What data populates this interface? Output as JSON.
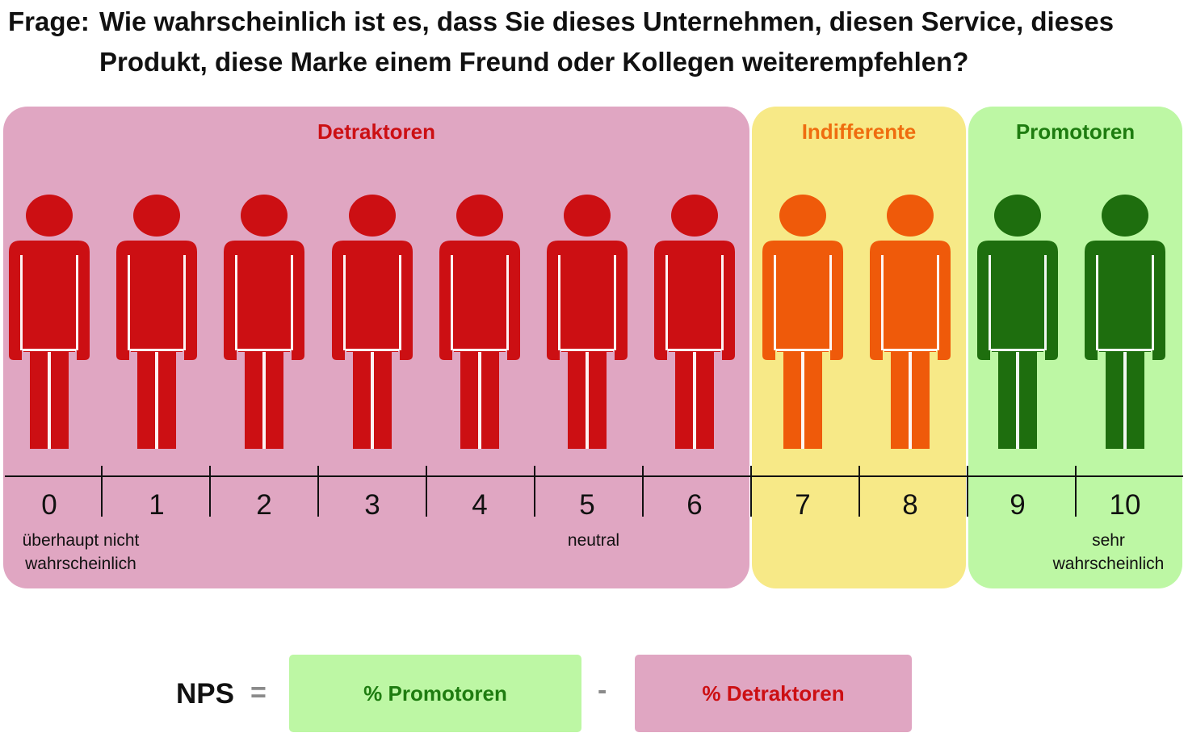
{
  "question": {
    "label": "Frage:",
    "text": "Wie wahrscheinlich ist es, dass Sie dieses Unternehmen, diesen Service, dieses Produkt, diese Marke einem Freund oder Kollegen weiterempfehlen?"
  },
  "groups": [
    {
      "name": "Detraktoren",
      "color": "#cc0f13",
      "background": "#e0a6c2",
      "scores": [
        0,
        1,
        2,
        3,
        4,
        5,
        6
      ]
    },
    {
      "name": "Indifferente",
      "color": "#ef6d0f",
      "background": "#f7e987",
      "scores": [
        7,
        8
      ]
    },
    {
      "name": "Promotoren",
      "color": "#1e7c10",
      "background": "#bdf7a4",
      "scores": [
        9,
        10
      ]
    }
  ],
  "scale": {
    "scores": [
      "0",
      "1",
      "2",
      "3",
      "4",
      "5",
      "6",
      "7",
      "8",
      "9",
      "10"
    ],
    "person_colors": [
      "#cc0f13",
      "#cc0f13",
      "#cc0f13",
      "#cc0f13",
      "#cc0f13",
      "#cc0f13",
      "#cc0f13",
      "#ef5a0a",
      "#ef5a0a",
      "#1e6e0e",
      "#1e6e0e"
    ],
    "anchor_low": "überhaupt nicht wahrscheinlich",
    "anchor_mid": "neutral",
    "anchor_high": "sehr wahrscheinlich"
  },
  "formula": {
    "label": "NPS",
    "equals": "=",
    "minus": "-",
    "promoters": "% Promotoren",
    "detractors": "% Detraktoren"
  },
  "icons": {
    "person": "person-icon"
  }
}
